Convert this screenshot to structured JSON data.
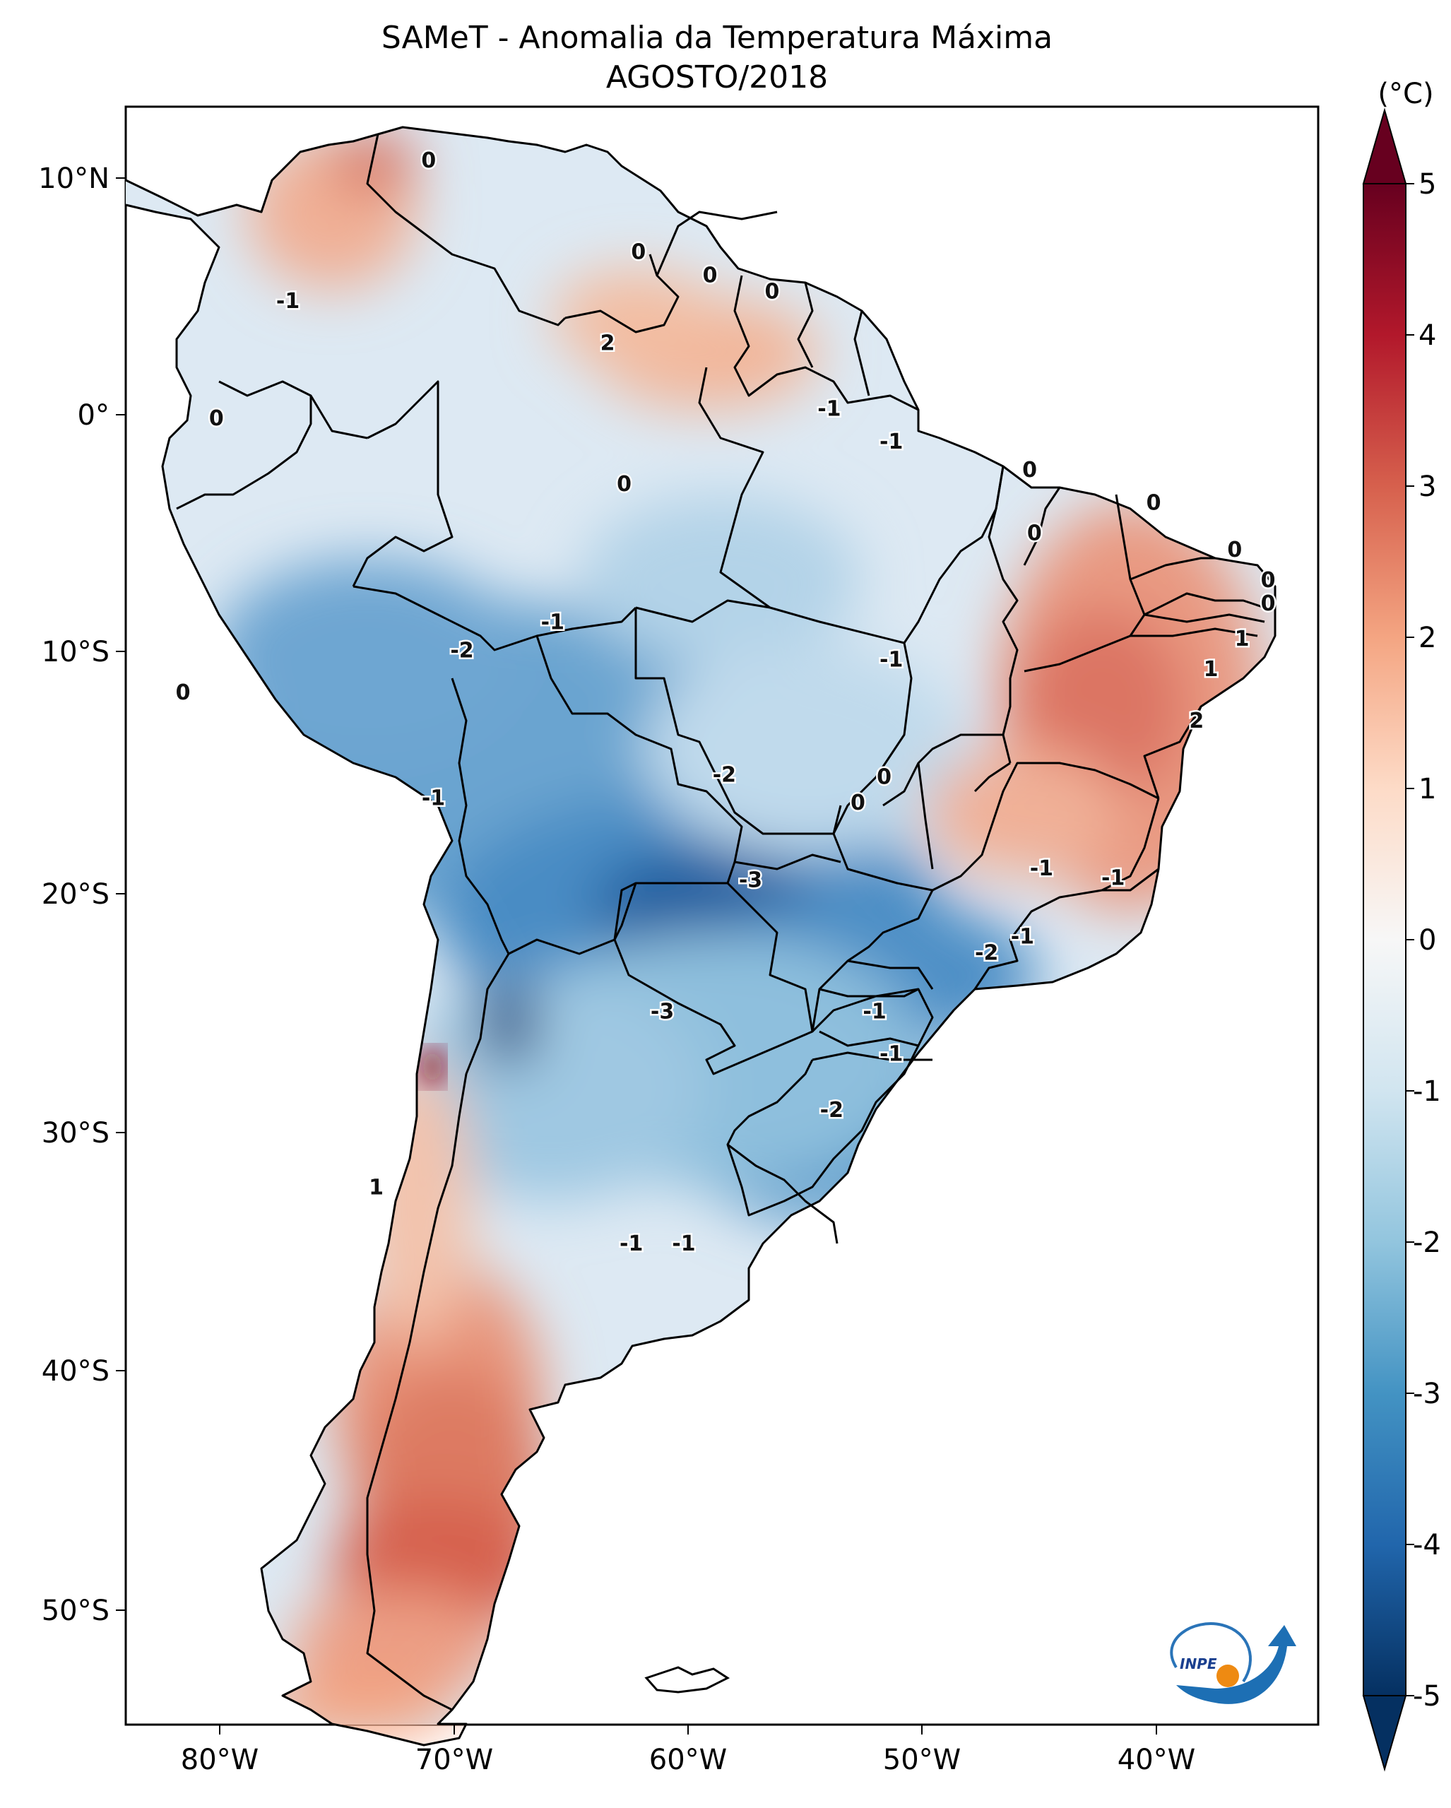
{
  "title": {
    "line1": "SAMeT - Anomalia da Temperatura Máxima",
    "line2": "AGOSTO/2018"
  },
  "colorbar": {
    "unit": "(°C)",
    "ticks": [
      "5",
      "4",
      "3",
      "2",
      "1",
      "0",
      "-1",
      "-2",
      "-3",
      "-4",
      "-5"
    ],
    "colors": [
      "#67001f",
      "#b2182b",
      "#d6604d",
      "#f4a582",
      "#fddbc7",
      "#f7f7f7",
      "#d1e5f0",
      "#92c5de",
      "#4393c3",
      "#2166ac",
      "#053061"
    ]
  },
  "axes": {
    "lon_labels": [
      "80°W",
      "70°W",
      "60°W",
      "50°W",
      "40°W"
    ],
    "lat_labels": [
      "10°N",
      "0°",
      "10°S",
      "20°S",
      "30°S",
      "40°S",
      "50°S"
    ]
  },
  "chart_data": {
    "type": "heatmap",
    "title": "SAMeT - Anomalia da Temperatura Máxima AGOSTO/2018",
    "units": "°C",
    "colorbar_range": [
      -5,
      5
    ],
    "lon_range": [
      -83,
      -33
    ],
    "lat_range": [
      -56,
      13
    ],
    "contour_labels": [
      {
        "value": "0",
        "lon": -70.3,
        "lat": 10.7
      },
      {
        "value": "0",
        "lon": -61.5,
        "lat": 6.8
      },
      {
        "value": "0",
        "lon": -58.5,
        "lat": 5.8
      },
      {
        "value": "0",
        "lon": -55.9,
        "lat": 5.1
      },
      {
        "value": "-1",
        "lon": -76.2,
        "lat": 4.7
      },
      {
        "value": "2",
        "lon": -62.8,
        "lat": 2.9
      },
      {
        "value": "0",
        "lon": -79.2,
        "lat": -0.3
      },
      {
        "value": "-1",
        "lon": -53.5,
        "lat": 0.1
      },
      {
        "value": "-1",
        "lon": -50.9,
        "lat": -1.3
      },
      {
        "value": "0",
        "lon": -62.1,
        "lat": -3.1
      },
      {
        "value": "0",
        "lon": -45.1,
        "lat": -2.5
      },
      {
        "value": "0",
        "lon": -39.9,
        "lat": -3.9
      },
      {
        "value": "0",
        "lon": -44.9,
        "lat": -5.2
      },
      {
        "value": "0",
        "lon": -36.5,
        "lat": -5.9
      },
      {
        "value": "0",
        "lon": -35.1,
        "lat": -7.2
      },
      {
        "value": "0",
        "lon": -35.1,
        "lat": -8.2
      },
      {
        "value": "-1",
        "lon": -65.1,
        "lat": -9.0
      },
      {
        "value": "-2",
        "lon": -68.9,
        "lat": -10.2
      },
      {
        "value": "1",
        "lon": -36.2,
        "lat": -9.7
      },
      {
        "value": "-1",
        "lon": -50.9,
        "lat": -10.6
      },
      {
        "value": "1",
        "lon": -37.5,
        "lat": -11.0
      },
      {
        "value": "0",
        "lon": -80.6,
        "lat": -12.0
      },
      {
        "value": "2",
        "lon": -38.1,
        "lat": -13.2
      },
      {
        "value": "-2",
        "lon": -57.9,
        "lat": -15.5
      },
      {
        "value": "0",
        "lon": -51.2,
        "lat": -15.6
      },
      {
        "value": "0",
        "lon": -52.3,
        "lat": -16.7
      },
      {
        "value": "-1",
        "lon": -70.1,
        "lat": -16.5
      },
      {
        "value": "-1",
        "lon": -44.6,
        "lat": -19.5
      },
      {
        "value": "-1",
        "lon": -41.6,
        "lat": -19.9
      },
      {
        "value": "-3",
        "lon": -56.8,
        "lat": -20.0
      },
      {
        "value": "-2",
        "lon": -46.9,
        "lat": -23.1
      },
      {
        "value": "-1",
        "lon": -45.4,
        "lat": -22.4
      },
      {
        "value": "-3",
        "lon": -60.5,
        "lat": -25.6
      },
      {
        "value": "-1",
        "lon": -51.6,
        "lat": -25.6
      },
      {
        "value": "-1",
        "lon": -50.9,
        "lat": -27.4
      },
      {
        "value": "1",
        "lon": -72.5,
        "lat": -33.1
      },
      {
        "value": "-2",
        "lon": -53.4,
        "lat": -29.8
      },
      {
        "value": "-1",
        "lon": -61.8,
        "lat": -35.5
      },
      {
        "value": "-1",
        "lon": -59.6,
        "lat": -35.5
      }
    ]
  },
  "logo": {
    "text": "INPE"
  }
}
